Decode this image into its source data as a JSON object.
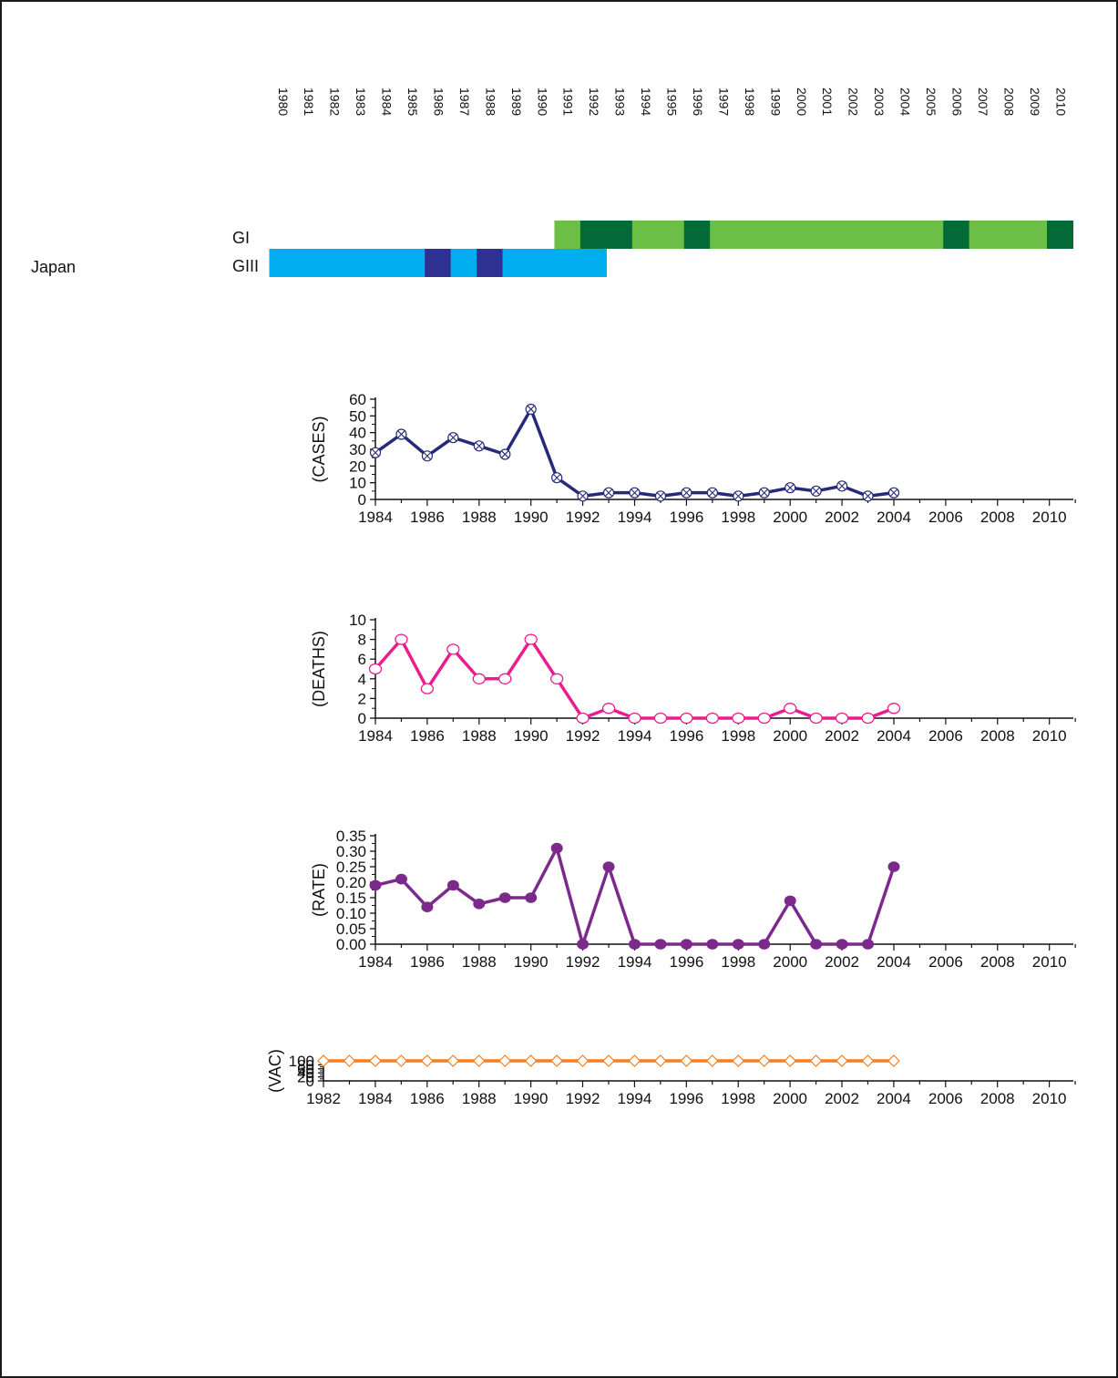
{
  "country_label": "Japan",
  "timeline": {
    "years": [
      1980,
      1981,
      1982,
      1983,
      1984,
      1985,
      1986,
      1987,
      1988,
      1989,
      1990,
      1991,
      1992,
      1993,
      1994,
      1995,
      1996,
      1997,
      1998,
      1999,
      2000,
      2001,
      2002,
      2003,
      2004,
      2005,
      2006,
      2007,
      2008,
      2009,
      2010
    ],
    "year_labels": [
      "1980",
      "1981",
      "1982",
      "1983",
      "1984",
      "1985",
      "1986",
      "1987",
      "1988",
      "1989",
      "1990",
      "1991",
      "1992",
      "1993",
      "1994",
      "1995",
      "1996",
      "1997",
      "1998",
      "1999",
      "2000",
      "2001",
      "2002",
      "2003",
      "2004",
      "2005",
      "2006",
      "2007",
      "2008",
      "2009",
      "2010"
    ],
    "rows": [
      {
        "label": "GI",
        "colors": {
          "light": "#6bbf47",
          "dark": "#046a38"
        },
        "segments": [
          {
            "year": 1991,
            "tone": "light"
          },
          {
            "year": 1992,
            "tone": "dark"
          },
          {
            "year": 1993,
            "tone": "dark"
          },
          {
            "year": 1994,
            "tone": "light"
          },
          {
            "year": 1995,
            "tone": "light"
          },
          {
            "year": 1996,
            "tone": "dark"
          },
          {
            "year": 1997,
            "tone": "light"
          },
          {
            "year": 1998,
            "tone": "light"
          },
          {
            "year": 1999,
            "tone": "light"
          },
          {
            "year": 2000,
            "tone": "light"
          },
          {
            "year": 2001,
            "tone": "light"
          },
          {
            "year": 2002,
            "tone": "light"
          },
          {
            "year": 2003,
            "tone": "light"
          },
          {
            "year": 2004,
            "tone": "light"
          },
          {
            "year": 2005,
            "tone": "light"
          },
          {
            "year": 2006,
            "tone": "dark"
          },
          {
            "year": 2007,
            "tone": "light"
          },
          {
            "year": 2008,
            "tone": "light"
          },
          {
            "year": 2009,
            "tone": "light"
          },
          {
            "year": 2010,
            "tone": "dark"
          }
        ]
      },
      {
        "label": "GIII",
        "colors": {
          "light": "#00aeef",
          "dark": "#2e3192"
        },
        "segments": [
          {
            "year": 1980,
            "tone": "light"
          },
          {
            "year": 1981,
            "tone": "light"
          },
          {
            "year": 1982,
            "tone": "light"
          },
          {
            "year": 1983,
            "tone": "light"
          },
          {
            "year": 1984,
            "tone": "light"
          },
          {
            "year": 1985,
            "tone": "light"
          },
          {
            "year": 1986,
            "tone": "dark"
          },
          {
            "year": 1987,
            "tone": "light"
          },
          {
            "year": 1988,
            "tone": "dark"
          },
          {
            "year": 1989,
            "tone": "light"
          },
          {
            "year": 1990,
            "tone": "light"
          },
          {
            "year": 1991,
            "tone": "light"
          },
          {
            "year": 1992,
            "tone": "light"
          }
        ]
      }
    ]
  },
  "chart_data": [
    {
      "type": "line",
      "ylabel": "(CASES)",
      "xlim": [
        1984,
        2011
      ],
      "ylim": [
        0,
        60
      ],
      "yticks": [
        0,
        10,
        20,
        30,
        40,
        50,
        60
      ],
      "ytick_labels": [
        "0",
        "10",
        "20",
        "30",
        "40",
        "50",
        "60"
      ],
      "xticks": [
        1984,
        1986,
        1988,
        1990,
        1992,
        1994,
        1996,
        1998,
        2000,
        2002,
        2004,
        2006,
        2008,
        2010
      ],
      "xtick_labels": [
        "1984",
        "1986",
        "1988",
        "1990",
        "1992",
        "1994",
        "1996",
        "1998",
        "2000",
        "2002",
        "2004",
        "2006",
        "2008",
        "2010"
      ],
      "marker": "crossed-circle",
      "color": "#262a78",
      "x": [
        1984,
        1985,
        1986,
        1987,
        1988,
        1989,
        1990,
        1991,
        1992,
        1993,
        1994,
        1995,
        1996,
        1997,
        1998,
        1999,
        2000,
        2001,
        2002,
        2003,
        2004
      ],
      "y": [
        28,
        39,
        26,
        37,
        32,
        27,
        54,
        13,
        2,
        4,
        4,
        2,
        4,
        4,
        2,
        4,
        7,
        5,
        8,
        2,
        4
      ]
    },
    {
      "type": "line",
      "ylabel": "(DEATHS)",
      "xlim": [
        1984,
        2011
      ],
      "ylim": [
        0,
        10
      ],
      "yticks": [
        0,
        2,
        4,
        6,
        8,
        10
      ],
      "ytick_labels": [
        "0",
        "2",
        "4",
        "6",
        "8",
        "10"
      ],
      "xticks": [
        1984,
        1986,
        1988,
        1990,
        1992,
        1994,
        1996,
        1998,
        2000,
        2002,
        2004,
        2006,
        2008,
        2010
      ],
      "xtick_labels": [
        "1984",
        "1986",
        "1988",
        "1990",
        "1992",
        "1994",
        "1996",
        "1998",
        "2000",
        "2002",
        "2004",
        "2006",
        "2008",
        "2010"
      ],
      "marker": "open-circle",
      "color": "#ec1b8e",
      "x": [
        1984,
        1985,
        1986,
        1987,
        1988,
        1989,
        1990,
        1991,
        1992,
        1993,
        1994,
        1995,
        1996,
        1997,
        1998,
        1999,
        2000,
        2001,
        2002,
        2003,
        2004
      ],
      "y": [
        5,
        8,
        3,
        7,
        4,
        4,
        8,
        4,
        0,
        1,
        0,
        0,
        0,
        0,
        0,
        0,
        1,
        0,
        0,
        0,
        1
      ]
    },
    {
      "type": "line",
      "ylabel": "(RATE)",
      "xlim": [
        1984,
        2011
      ],
      "ylim": [
        0,
        0.35
      ],
      "yticks": [
        0,
        0.05,
        0.1,
        0.15,
        0.2,
        0.25,
        0.3,
        0.35
      ],
      "ytick_labels": [
        "0.00",
        "0.05",
        "0.10",
        "0.15",
        "0.20",
        "0.25",
        "0.30",
        "0.35"
      ],
      "xticks": [
        1984,
        1986,
        1988,
        1990,
        1992,
        1994,
        1996,
        1998,
        2000,
        2002,
        2004,
        2006,
        2008,
        2010
      ],
      "xtick_labels": [
        "1984",
        "1986",
        "1988",
        "1990",
        "1992",
        "1994",
        "1996",
        "1998",
        "2000",
        "2002",
        "2004",
        "2006",
        "2008",
        "2010"
      ],
      "marker": "filled-circle",
      "color": "#7b2a8c",
      "x": [
        1984,
        1985,
        1986,
        1987,
        1988,
        1989,
        1990,
        1991,
        1992,
        1993,
        1994,
        1995,
        1996,
        1997,
        1998,
        1999,
        2000,
        2001,
        2002,
        2003,
        2004
      ],
      "y": [
        0.19,
        0.21,
        0.12,
        0.19,
        0.13,
        0.15,
        0.15,
        0.31,
        0,
        0.25,
        0,
        0,
        0,
        0,
        0,
        0,
        0.14,
        0,
        0,
        0,
        0.25
      ]
    },
    {
      "type": "line",
      "ylabel": "(VAC)",
      "xlim": [
        1982,
        2011
      ],
      "ylim": [
        0,
        100
      ],
      "yticks": [
        0,
        20,
        40,
        60,
        80,
        100
      ],
      "ytick_labels": [
        "0",
        "20",
        "40",
        "60",
        "80",
        "100"
      ],
      "xticks": [
        1982,
        1984,
        1986,
        1988,
        1990,
        1992,
        1994,
        1996,
        1998,
        2000,
        2002,
        2004,
        2006,
        2008,
        2010
      ],
      "xtick_labels": [
        "1982",
        "1984",
        "1986",
        "1988",
        "1990",
        "1992",
        "1994",
        "1996",
        "1998",
        "2000",
        "2002",
        "2004",
        "2006",
        "2008",
        "2010"
      ],
      "marker": "open-diamond",
      "color": "#f47f20",
      "x": [
        1982,
        1983,
        1984,
        1985,
        1986,
        1987,
        1988,
        1989,
        1990,
        1991,
        1992,
        1993,
        1994,
        1995,
        1996,
        1997,
        1998,
        1999,
        2000,
        2001,
        2002,
        2003,
        2004
      ],
      "y": [
        100,
        100,
        100,
        100,
        100,
        100,
        100,
        100,
        100,
        100,
        100,
        100,
        100,
        100,
        100,
        100,
        100,
        100,
        100,
        100,
        100,
        100,
        100
      ]
    }
  ]
}
